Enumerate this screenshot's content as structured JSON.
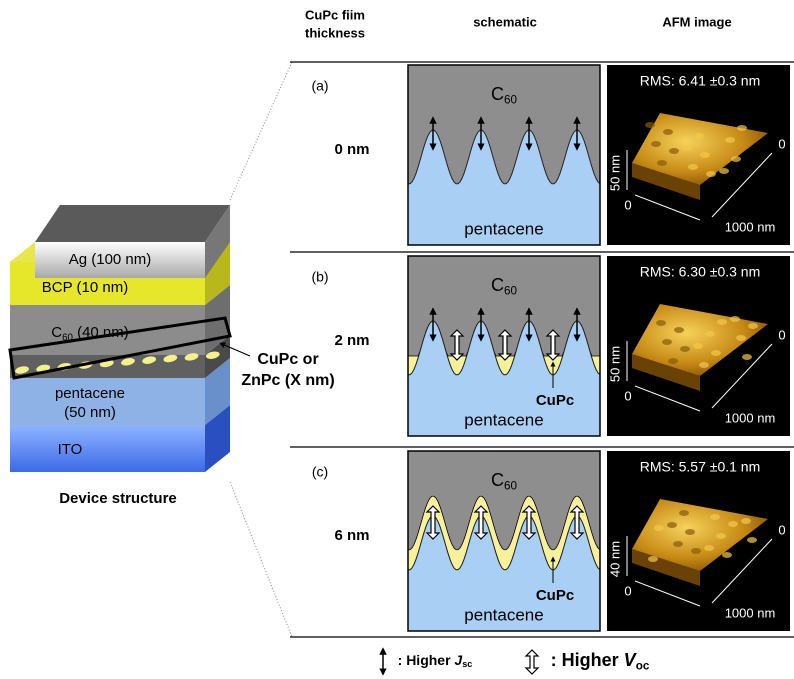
{
  "device": {
    "ag": "Ag (100 nm)",
    "bcp": "BCP (10 nm)",
    "c60": {
      "main": "C",
      "sub": "60",
      "rest": " (40 nm)"
    },
    "pentacene": [
      "pentacene",
      "(50 nm)"
    ],
    "ito": "ITO",
    "interlayer": [
      "CuPc or",
      "ZnPc (X nm)"
    ],
    "caption": "Device structure"
  },
  "header": {
    "thickness": [
      "CuPc fiim",
      "thickness"
    ],
    "schematic": "schematic",
    "afm": "AFM image"
  },
  "rows": [
    {
      "label": "(a)",
      "thickness": "0 nm",
      "top": {
        "main": "C",
        "sub": "60"
      },
      "bottom": "pentacene",
      "rms": "RMS: 6.41 ±0.3 nm",
      "afm_z": "50 nm",
      "afm_y0": "0",
      "afm_x0": "0",
      "afm_x": "1000 nm"
    },
    {
      "label": "(b)",
      "thickness": "2 nm",
      "top": {
        "main": "C",
        "sub": "60"
      },
      "bottom": "pentacene",
      "interlayer": "CuPc",
      "rms": "RMS: 6.30 ±0.3 nm",
      "afm_z": "50 nm",
      "afm_y0": "0",
      "afm_x0": "0",
      "afm_x": "1000 nm"
    },
    {
      "label": "(c)",
      "thickness": "6 nm",
      "top": {
        "main": "C",
        "sub": "60"
      },
      "bottom": "pentacene",
      "interlayer": "CuPc",
      "rms": "RMS: 5.57 ±0.1 nm",
      "afm_z": "40 nm",
      "afm_y0": "0",
      "afm_x0": "0",
      "afm_x": "1000 nm"
    }
  ],
  "legend": {
    "jsc": {
      "main": ":  Higher ",
      "sym": "J",
      "sub": "sc"
    },
    "voc": {
      "main": ": Higher ",
      "sym": "V",
      "sub": "oc"
    }
  }
}
